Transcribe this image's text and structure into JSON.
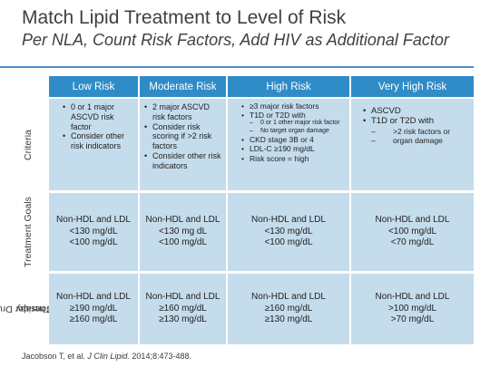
{
  "title": "Match Lipid Treatment to Level of Risk",
  "subtitle": "Per NLA, Count Risk Factors, Add HIV as Additional Factor",
  "row_labels": {
    "criteria": "Criteria",
    "goals": "Treatment Goals",
    "drug_line1": "Consider Drug",
    "drug_line2": "Therapy"
  },
  "headers": [
    "Low Risk",
    "Moderate Risk",
    "High Risk",
    "Very High Risk"
  ],
  "criteria": {
    "low": [
      "0 or 1 major ASCVD risk factor",
      "Consider other risk indicators"
    ],
    "moderate": [
      "2 major ASCVD risk factors",
      "Consider risk scoring if >2 risk factors",
      "Consider other risk indicators"
    ],
    "high": {
      "item1": "≥3 major risk factors",
      "item2": "T1D or T2D with",
      "sub1": "0 or 1 other major risk factor",
      "sub2": "No target organ damage",
      "item3": "CKD stage 3B or 4",
      "item4": "LDL-C ≥190 mg/dL",
      "item5": "Risk score = high"
    },
    "very_high": {
      "item1": "ASCVD",
      "item2": "T1D or T2D with",
      "sub1": ">2 risk factors or",
      "sub2": "organ damage"
    }
  },
  "goals": [
    [
      "Non-HDL and LDL",
      "<130 mg/dL",
      "<100 mg/dL"
    ],
    [
      "Non-HDL and LDL",
      "<130 mg dL",
      "<100 mg/dL"
    ],
    [
      "Non-HDL and LDL",
      "<130 mg/dL",
      "<100 mg/dL"
    ],
    [
      "Non-HDL and LDL",
      "<100 mg/dL",
      "<70 mg/dL"
    ]
  ],
  "drug": [
    [
      "Non-HDL and LDL",
      "≥190 mg/dL",
      "≥160 mg/dL"
    ],
    [
      "Non-HDL and LDL",
      "≥160 mg/dL",
      "≥130 mg/dL"
    ],
    [
      "Non-HDL and LDL",
      "≥160 mg/dL",
      "≥130 mg/dL"
    ],
    [
      "Non-HDL and LDL",
      ">100 mg/dL",
      ">70 mg/dL"
    ]
  ],
  "citation": {
    "authors": "Jacobson T, et al. ",
    "journal": "J Clin Lipid.",
    "rest": " 2014;8:473-488."
  },
  "colors": {
    "header": "#2f8cc7",
    "cell": "#c5dcec",
    "rule": "#4a8fc9"
  }
}
